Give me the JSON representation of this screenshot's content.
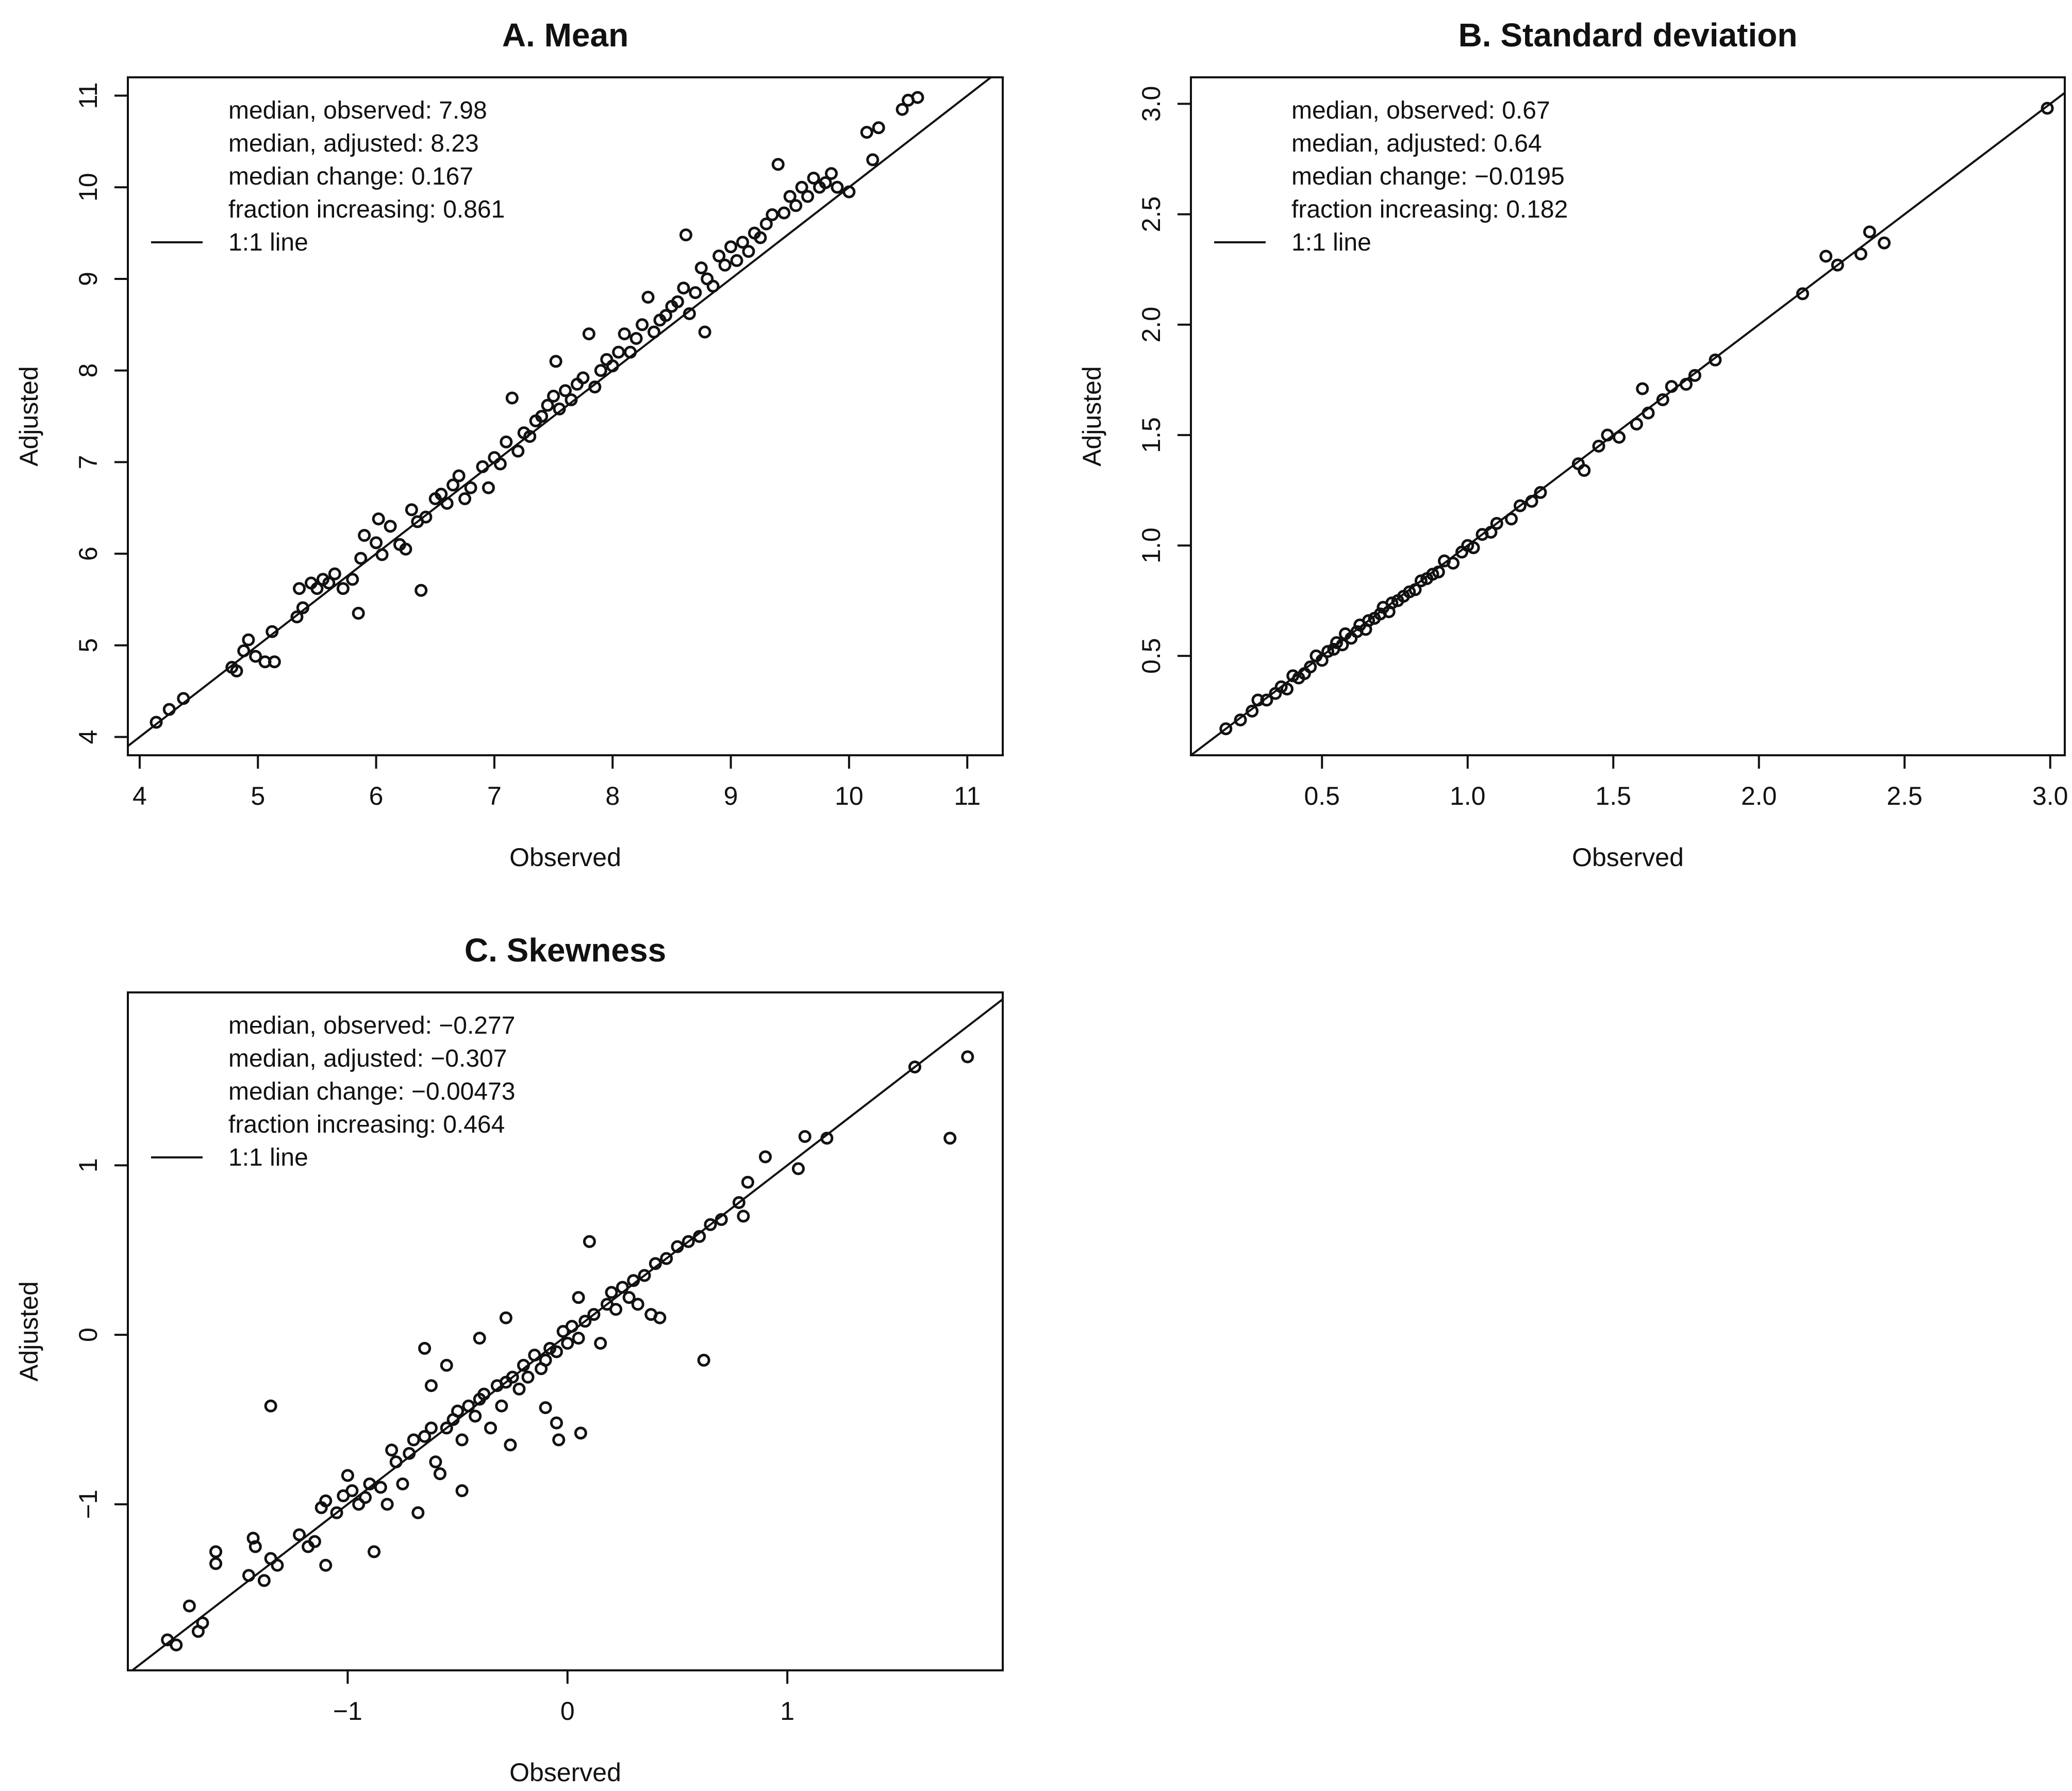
{
  "figure": {
    "colors": {
      "ink": "#111111",
      "background": "#ffffff"
    }
  },
  "chart_data": [
    {
      "id": "A",
      "type": "scatter",
      "title": "A. Mean",
      "xlabel": "Observed",
      "ylabel": "Adjusted",
      "xlim": [
        3.9,
        11.3
      ],
      "ylim": [
        3.8,
        11.2
      ],
      "xticks": [
        4,
        5,
        6,
        7,
        8,
        9,
        10,
        11
      ],
      "xtick_labels": [
        "4",
        "5",
        "6",
        "7",
        "8",
        "9",
        "10",
        "11"
      ],
      "yticks": [
        4,
        5,
        6,
        7,
        8,
        9,
        10,
        11
      ],
      "ytick_labels": [
        "4",
        "5",
        "6",
        "7",
        "8",
        "9",
        "10",
        "11"
      ],
      "reference_line": "1:1",
      "legend": {
        "position": "top-left",
        "lines": [
          "median, observed: 7.98",
          "median, adjusted: 8.23",
          "median change: 0.167",
          "fraction increasing: 0.861"
        ],
        "line_entry": "1:1 line"
      },
      "marker": "open-circle",
      "points": [
        [
          4.14,
          4.16
        ],
        [
          4.25,
          4.3
        ],
        [
          4.37,
          4.42
        ],
        [
          4.78,
          4.76
        ],
        [
          4.82,
          4.72
        ],
        [
          4.88,
          4.94
        ],
        [
          4.92,
          5.06
        ],
        [
          4.98,
          4.88
        ],
        [
          5.06,
          4.82
        ],
        [
          5.12,
          5.15
        ],
        [
          5.14,
          4.82
        ],
        [
          5.33,
          5.31
        ],
        [
          5.35,
          5.62
        ],
        [
          5.38,
          5.41
        ],
        [
          5.45,
          5.68
        ],
        [
          5.5,
          5.62
        ],
        [
          5.55,
          5.72
        ],
        [
          5.6,
          5.68
        ],
        [
          5.65,
          5.78
        ],
        [
          5.72,
          5.62
        ],
        [
          5.8,
          5.72
        ],
        [
          5.85,
          5.35
        ],
        [
          5.87,
          5.95
        ],
        [
          5.9,
          6.2
        ],
        [
          6.0,
          6.12
        ],
        [
          6.02,
          6.38
        ],
        [
          6.05,
          5.99
        ],
        [
          6.12,
          6.3
        ],
        [
          6.2,
          6.1
        ],
        [
          6.25,
          6.05
        ],
        [
          6.3,
          6.48
        ],
        [
          6.35,
          6.35
        ],
        [
          6.38,
          5.6
        ],
        [
          6.42,
          6.4
        ],
        [
          6.5,
          6.6
        ],
        [
          6.55,
          6.65
        ],
        [
          6.6,
          6.55
        ],
        [
          6.65,
          6.75
        ],
        [
          6.7,
          6.85
        ],
        [
          6.75,
          6.6
        ],
        [
          6.8,
          6.72
        ],
        [
          6.9,
          6.95
        ],
        [
          6.95,
          6.72
        ],
        [
          7.0,
          7.05
        ],
        [
          7.05,
          6.98
        ],
        [
          7.1,
          7.22
        ],
        [
          7.15,
          7.7
        ],
        [
          7.2,
          7.12
        ],
        [
          7.25,
          7.32
        ],
        [
          7.3,
          7.28
        ],
        [
          7.35,
          7.45
        ],
        [
          7.4,
          7.5
        ],
        [
          7.45,
          7.62
        ],
        [
          7.5,
          7.72
        ],
        [
          7.52,
          8.1
        ],
        [
          7.55,
          7.58
        ],
        [
          7.6,
          7.78
        ],
        [
          7.65,
          7.68
        ],
        [
          7.7,
          7.85
        ],
        [
          7.75,
          7.92
        ],
        [
          7.8,
          8.4
        ],
        [
          7.85,
          7.82
        ],
        [
          7.9,
          8.0
        ],
        [
          7.95,
          8.12
        ],
        [
          8.0,
          8.05
        ],
        [
          8.05,
          8.2
        ],
        [
          8.1,
          8.4
        ],
        [
          8.15,
          8.2
        ],
        [
          8.2,
          8.35
        ],
        [
          8.25,
          8.5
        ],
        [
          8.3,
          8.8
        ],
        [
          8.35,
          8.42
        ],
        [
          8.4,
          8.55
        ],
        [
          8.45,
          8.6
        ],
        [
          8.5,
          8.7
        ],
        [
          8.55,
          8.75
        ],
        [
          8.6,
          8.9
        ],
        [
          8.62,
          9.48
        ],
        [
          8.65,
          8.62
        ],
        [
          8.7,
          8.85
        ],
        [
          8.75,
          9.12
        ],
        [
          8.78,
          8.42
        ],
        [
          8.8,
          9.0
        ],
        [
          8.85,
          8.92
        ],
        [
          8.9,
          9.25
        ],
        [
          8.95,
          9.15
        ],
        [
          9.0,
          9.35
        ],
        [
          9.05,
          9.2
        ],
        [
          9.1,
          9.4
        ],
        [
          9.15,
          9.3
        ],
        [
          9.2,
          9.5
        ],
        [
          9.25,
          9.45
        ],
        [
          9.3,
          9.6
        ],
        [
          9.35,
          9.7
        ],
        [
          9.4,
          10.25
        ],
        [
          9.45,
          9.72
        ],
        [
          9.5,
          9.9
        ],
        [
          9.55,
          9.8
        ],
        [
          9.6,
          10.0
        ],
        [
          9.65,
          9.9
        ],
        [
          9.7,
          10.1
        ],
        [
          9.75,
          10.0
        ],
        [
          9.8,
          10.05
        ],
        [
          9.85,
          10.15
        ],
        [
          9.9,
          10.0
        ],
        [
          10.0,
          9.95
        ],
        [
          10.15,
          10.6
        ],
        [
          10.2,
          10.3
        ],
        [
          10.25,
          10.65
        ],
        [
          10.45,
          10.85
        ],
        [
          10.5,
          10.95
        ],
        [
          10.58,
          10.98
        ]
      ]
    },
    {
      "id": "B",
      "type": "scatter",
      "title": "B. Standard deviation",
      "xlabel": "Observed",
      "ylabel": "Adjusted",
      "xlim": [
        0.05,
        3.05
      ],
      "ylim": [
        0.05,
        3.12
      ],
      "xticks": [
        0.5,
        1.0,
        1.5,
        2.0,
        2.5,
        3.0
      ],
      "xtick_labels": [
        "0.5",
        "1.0",
        "1.5",
        "2.0",
        "2.5",
        "3.0"
      ],
      "yticks": [
        0.5,
        1.0,
        1.5,
        2.0,
        2.5,
        3.0
      ],
      "ytick_labels": [
        "0.5",
        "1.0",
        "1.5",
        "2.0",
        "2.5",
        "3.0"
      ],
      "reference_line": "1:1",
      "legend": {
        "position": "top-left",
        "lines": [
          "median, observed: 0.67",
          "median, adjusted: 0.64",
          "median change: −0.0195",
          "fraction increasing: 0.182"
        ],
        "line_entry": "1:1 line"
      },
      "marker": "open-circle",
      "points": [
        [
          0.17,
          0.17
        ],
        [
          0.22,
          0.21
        ],
        [
          0.26,
          0.25
        ],
        [
          0.28,
          0.3
        ],
        [
          0.31,
          0.3
        ],
        [
          0.34,
          0.33
        ],
        [
          0.36,
          0.36
        ],
        [
          0.38,
          0.35
        ],
        [
          0.4,
          0.41
        ],
        [
          0.42,
          0.4
        ],
        [
          0.44,
          0.42
        ],
        [
          0.46,
          0.45
        ],
        [
          0.48,
          0.5
        ],
        [
          0.5,
          0.48
        ],
        [
          0.52,
          0.52
        ],
        [
          0.54,
          0.53
        ],
        [
          0.55,
          0.56
        ],
        [
          0.57,
          0.55
        ],
        [
          0.58,
          0.6
        ],
        [
          0.6,
          0.58
        ],
        [
          0.62,
          0.61
        ],
        [
          0.63,
          0.64
        ],
        [
          0.65,
          0.62
        ],
        [
          0.66,
          0.66
        ],
        [
          0.68,
          0.67
        ],
        [
          0.7,
          0.69
        ],
        [
          0.71,
          0.72
        ],
        [
          0.73,
          0.7
        ],
        [
          0.74,
          0.74
        ],
        [
          0.76,
          0.75
        ],
        [
          0.78,
          0.77
        ],
        [
          0.8,
          0.79
        ],
        [
          0.82,
          0.8
        ],
        [
          0.84,
          0.84
        ],
        [
          0.86,
          0.85
        ],
        [
          0.88,
          0.87
        ],
        [
          0.9,
          0.88
        ],
        [
          0.92,
          0.93
        ],
        [
          0.95,
          0.92
        ],
        [
          0.98,
          0.97
        ],
        [
          1.0,
          1.0
        ],
        [
          1.02,
          0.99
        ],
        [
          1.05,
          1.05
        ],
        [
          1.08,
          1.06
        ],
        [
          1.1,
          1.1
        ],
        [
          1.15,
          1.12
        ],
        [
          1.18,
          1.18
        ],
        [
          1.22,
          1.2
        ],
        [
          1.25,
          1.24
        ],
        [
          1.38,
          1.37
        ],
        [
          1.4,
          1.34
        ],
        [
          1.45,
          1.45
        ],
        [
          1.48,
          1.5
        ],
        [
          1.52,
          1.49
        ],
        [
          1.58,
          1.55
        ],
        [
          1.6,
          1.71
        ],
        [
          1.62,
          1.6
        ],
        [
          1.67,
          1.66
        ],
        [
          1.7,
          1.72
        ],
        [
          1.75,
          1.73
        ],
        [
          1.78,
          1.77
        ],
        [
          1.85,
          1.84
        ],
        [
          2.15,
          2.14
        ],
        [
          2.23,
          2.31
        ],
        [
          2.27,
          2.27
        ],
        [
          2.35,
          2.32
        ],
        [
          2.38,
          2.42
        ],
        [
          2.43,
          2.37
        ],
        [
          2.99,
          2.98
        ]
      ]
    },
    {
      "id": "C",
      "type": "scatter",
      "title": "C. Skewness",
      "xlabel": "Observed",
      "ylabel": "Adjusted",
      "xlim": [
        -2.0,
        1.98
      ],
      "ylim": [
        -1.98,
        2.02
      ],
      "xticks": [
        -1,
        0,
        1
      ],
      "xtick_labels": [
        "−1",
        "0",
        "1"
      ],
      "yticks": [
        -1,
        0,
        1
      ],
      "ytick_labels": [
        "−1",
        "0",
        "1"
      ],
      "reference_line": "1:1",
      "legend": {
        "position": "top-left",
        "lines": [
          "median, observed: −0.277",
          "median, adjusted: −0.307",
          "median change: −0.00473",
          "fraction increasing: 0.464"
        ],
        "line_entry": "1:1 line"
      },
      "marker": "open-circle",
      "points": [
        [
          -1.82,
          -1.8
        ],
        [
          -1.78,
          -1.83
        ],
        [
          -1.72,
          -1.6
        ],
        [
          -1.68,
          -1.75
        ],
        [
          -1.66,
          -1.7
        ],
        [
          -1.6,
          -1.28
        ],
        [
          -1.6,
          -1.35
        ],
        [
          -1.45,
          -1.42
        ],
        [
          -1.43,
          -1.2
        ],
        [
          -1.42,
          -1.25
        ],
        [
          -1.38,
          -1.45
        ],
        [
          -1.35,
          -1.32
        ],
        [
          -1.35,
          -0.42
        ],
        [
          -1.32,
          -1.36
        ],
        [
          -1.22,
          -1.18
        ],
        [
          -1.18,
          -1.25
        ],
        [
          -1.15,
          -1.22
        ],
        [
          -1.12,
          -1.02
        ],
        [
          -1.1,
          -0.98
        ],
        [
          -1.1,
          -1.36
        ],
        [
          -1.05,
          -1.05
        ],
        [
          -1.02,
          -0.95
        ],
        [
          -1.0,
          -0.83
        ],
        [
          -0.98,
          -0.92
        ],
        [
          -0.95,
          -1.0
        ],
        [
          -0.92,
          -0.96
        ],
        [
          -0.9,
          -0.88
        ],
        [
          -0.88,
          -1.28
        ],
        [
          -0.85,
          -0.9
        ],
        [
          -0.82,
          -1.0
        ],
        [
          -0.8,
          -0.68
        ],
        [
          -0.78,
          -0.75
        ],
        [
          -0.75,
          -0.88
        ],
        [
          -0.72,
          -0.7
        ],
        [
          -0.7,
          -0.62
        ],
        [
          -0.68,
          -1.05
        ],
        [
          -0.65,
          -0.6
        ],
        [
          -0.65,
          -0.08
        ],
        [
          -0.62,
          -0.55
        ],
        [
          -0.62,
          -0.3
        ],
        [
          -0.6,
          -0.75
        ],
        [
          -0.58,
          -0.82
        ],
        [
          -0.55,
          -0.55
        ],
        [
          -0.55,
          -0.18
        ],
        [
          -0.52,
          -0.5
        ],
        [
          -0.5,
          -0.45
        ],
        [
          -0.48,
          -0.62
        ],
        [
          -0.48,
          -0.92
        ],
        [
          -0.45,
          -0.42
        ],
        [
          -0.42,
          -0.48
        ],
        [
          -0.4,
          -0.38
        ],
        [
          -0.4,
          -0.02
        ],
        [
          -0.38,
          -0.35
        ],
        [
          -0.35,
          -0.55
        ],
        [
          -0.32,
          -0.3
        ],
        [
          -0.3,
          -0.42
        ],
        [
          -0.28,
          -0.28
        ],
        [
          -0.28,
          0.1
        ],
        [
          -0.26,
          -0.65
        ],
        [
          -0.25,
          -0.25
        ],
        [
          -0.22,
          -0.32
        ],
        [
          -0.2,
          -0.18
        ],
        [
          -0.18,
          -0.25
        ],
        [
          -0.15,
          -0.12
        ],
        [
          -0.12,
          -0.2
        ],
        [
          -0.1,
          -0.15
        ],
        [
          -0.1,
          -0.43
        ],
        [
          -0.08,
          -0.08
        ],
        [
          -0.05,
          -0.1
        ],
        [
          -0.05,
          -0.52
        ],
        [
          -0.04,
          -0.62
        ],
        [
          -0.02,
          0.02
        ],
        [
          0.0,
          -0.05
        ],
        [
          0.02,
          0.05
        ],
        [
          0.05,
          -0.02
        ],
        [
          0.05,
          0.22
        ],
        [
          0.06,
          -0.58
        ],
        [
          0.08,
          0.08
        ],
        [
          0.1,
          0.55
        ],
        [
          0.12,
          0.12
        ],
        [
          0.15,
          -0.05
        ],
        [
          0.18,
          0.18
        ],
        [
          0.2,
          0.25
        ],
        [
          0.22,
          0.15
        ],
        [
          0.25,
          0.28
        ],
        [
          0.28,
          0.22
        ],
        [
          0.3,
          0.32
        ],
        [
          0.32,
          0.18
        ],
        [
          0.35,
          0.35
        ],
        [
          0.38,
          0.12
        ],
        [
          0.4,
          0.42
        ],
        [
          0.42,
          0.1
        ],
        [
          0.45,
          0.45
        ],
        [
          0.5,
          0.52
        ],
        [
          0.55,
          0.55
        ],
        [
          0.6,
          0.58
        ],
        [
          0.62,
          -0.15
        ],
        [
          0.65,
          0.65
        ],
        [
          0.7,
          0.68
        ],
        [
          0.78,
          0.78
        ],
        [
          0.8,
          0.7
        ],
        [
          0.82,
          0.9
        ],
        [
          0.9,
          1.05
        ],
        [
          1.05,
          0.98
        ],
        [
          1.08,
          1.17
        ],
        [
          1.18,
          1.16
        ],
        [
          1.58,
          1.58
        ],
        [
          1.74,
          1.16
        ],
        [
          1.82,
          1.64
        ]
      ]
    }
  ]
}
